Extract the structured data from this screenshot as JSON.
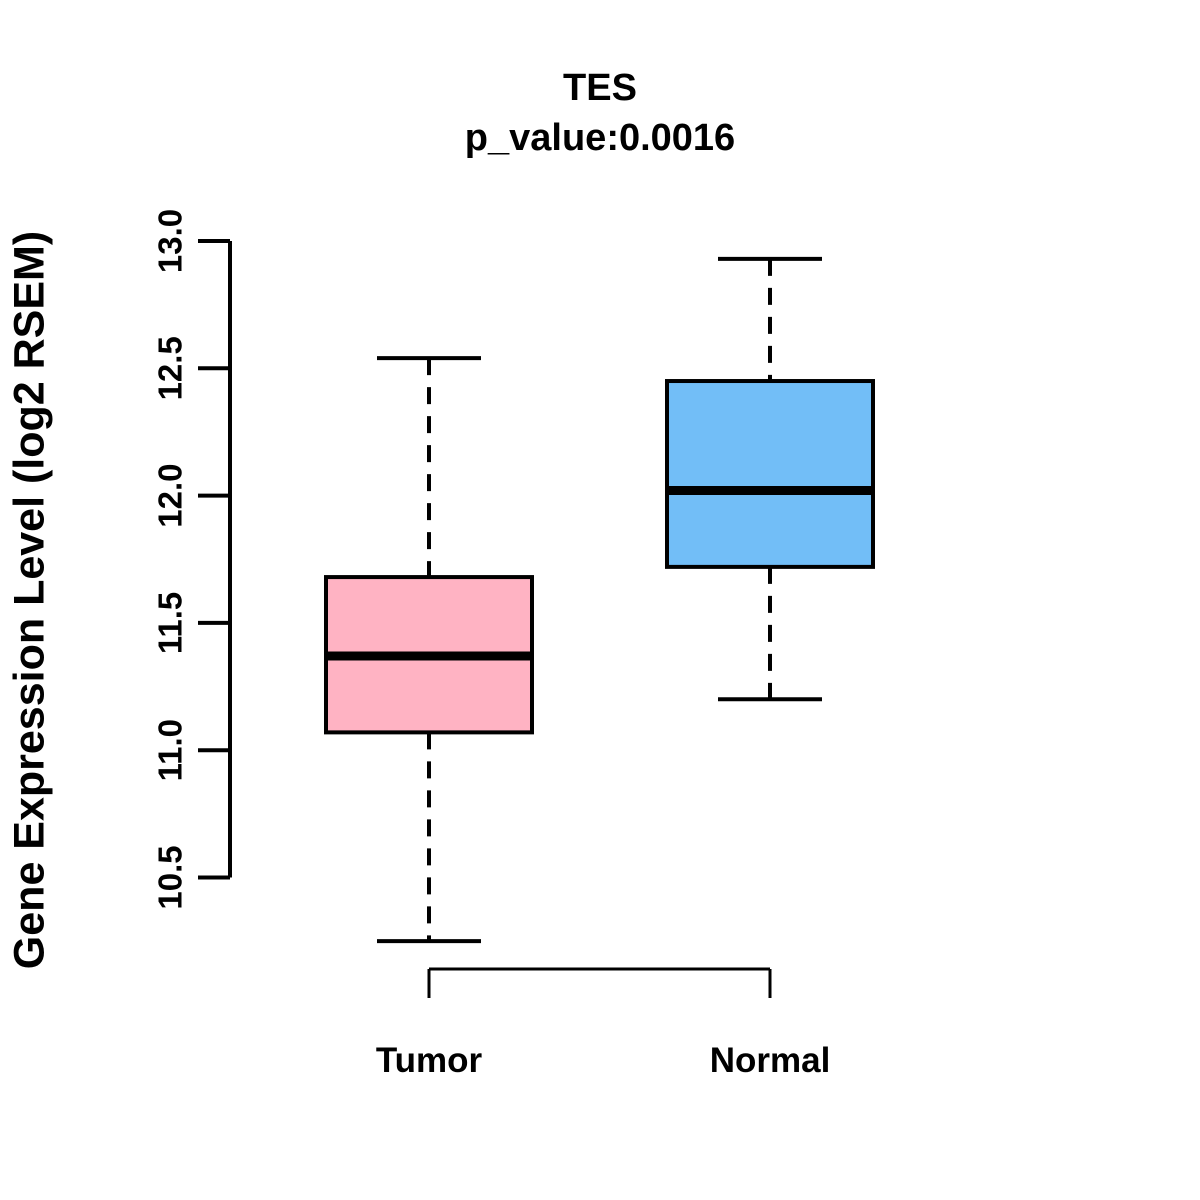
{
  "chart_data": {
    "type": "boxplot",
    "title": "TES",
    "subtitle": "p_value:0.0016",
    "p_value": "0.0016",
    "xlabel": "",
    "ylabel": "Gene Expression Level (log2 RSEM)",
    "ylim": [
      10.5,
      13.0
    ],
    "yticks": [
      "10.5",
      "11.0",
      "11.5",
      "12.0",
      "12.5",
      "13.0"
    ],
    "categories": [
      "Tumor",
      "Normal"
    ],
    "series": [
      {
        "name": "Tumor",
        "color": "#FFB3C3",
        "stats": {
          "whisker_low": 10.25,
          "q1": 11.07,
          "median": 11.37,
          "q3": 11.68,
          "whisker_high": 12.54
        }
      },
      {
        "name": "Normal",
        "color": "#72BEF7",
        "stats": {
          "whisker_low": 11.2,
          "q1": 11.72,
          "median": 12.02,
          "q3": 12.45,
          "whisker_high": 12.93
        }
      }
    ],
    "grid": false,
    "legend": null,
    "line_color": "#000000",
    "background": "#FFFFFF"
  }
}
